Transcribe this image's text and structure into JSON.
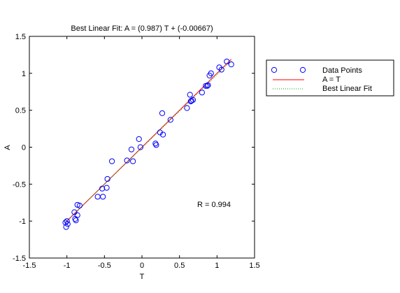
{
  "chart_data": {
    "type": "scatter",
    "title": "Best Linear Fit:  A = (0.987) T + (-0.00667)",
    "xlabel": "T",
    "ylabel": "A",
    "xlim": [
      -1.5,
      1.5
    ],
    "ylim": [
      -1.5,
      1.5
    ],
    "xticks": [
      -1.5,
      -1,
      -0.5,
      0,
      0.5,
      1,
      1.5
    ],
    "yticks": [
      -1.5,
      -1,
      -0.5,
      0,
      0.5,
      1,
      1.5
    ],
    "xtick_labels": [
      "-1.5",
      "-1",
      "-0.5",
      "0",
      "0.5",
      "1",
      "1.5"
    ],
    "ytick_labels": [
      "-1.5",
      "-1",
      "-0.5",
      "0",
      "0.5",
      "1",
      "1.5"
    ],
    "grid": false,
    "legend_position": "outside-right-top",
    "annotation": "R = 0.994",
    "fit": {
      "slope": 0.987,
      "intercept": -0.00667
    },
    "series": [
      {
        "name": "Data Points",
        "marker": "circle",
        "color": "#0000ff",
        "points": [
          [
            -1.01,
            -1.08
          ],
          [
            -1.02,
            -1.02
          ],
          [
            -1.0,
            -1.0
          ],
          [
            -0.99,
            -1.04
          ],
          [
            -0.9,
            -0.88
          ],
          [
            -0.89,
            -0.97
          ],
          [
            -0.88,
            -0.99
          ],
          [
            -0.86,
            -0.92
          ],
          [
            -0.86,
            -0.78
          ],
          [
            -0.83,
            -0.79
          ],
          [
            -0.59,
            -0.67
          ],
          [
            -0.53,
            -0.56
          ],
          [
            -0.52,
            -0.67
          ],
          [
            -0.47,
            -0.55
          ],
          [
            -0.46,
            -0.43
          ],
          [
            -0.4,
            -0.19
          ],
          [
            -0.2,
            -0.18
          ],
          [
            -0.14,
            -0.03
          ],
          [
            -0.12,
            -0.19
          ],
          [
            -0.04,
            0.11
          ],
          [
            -0.02,
            0.0
          ],
          [
            0.18,
            0.05
          ],
          [
            0.19,
            0.03
          ],
          [
            0.24,
            0.2
          ],
          [
            0.27,
            0.46
          ],
          [
            0.28,
            0.17
          ],
          [
            0.38,
            0.37
          ],
          [
            0.6,
            0.53
          ],
          [
            0.64,
            0.71
          ],
          [
            0.65,
            0.62
          ],
          [
            0.66,
            0.63
          ],
          [
            0.68,
            0.64
          ],
          [
            0.8,
            0.74
          ],
          [
            0.85,
            0.83
          ],
          [
            0.87,
            0.83
          ],
          [
            0.88,
            0.84
          ],
          [
            0.9,
            0.97
          ],
          [
            0.92,
            1.0
          ],
          [
            1.03,
            1.08
          ],
          [
            1.06,
            1.05
          ],
          [
            1.13,
            1.16
          ],
          [
            1.19,
            1.12
          ]
        ]
      },
      {
        "name": "A = T",
        "style": "solid",
        "color": "#ff0000",
        "x": [
          -1.02,
          1.19
        ],
        "y": [
          -1.02,
          1.19
        ]
      },
      {
        "name": "Best Linear Fit",
        "style": "dotted",
        "color": "#00aa00",
        "x": [
          -1.02,
          1.19
        ],
        "y": [
          -1.0134,
          1.1679
        ]
      }
    ]
  }
}
